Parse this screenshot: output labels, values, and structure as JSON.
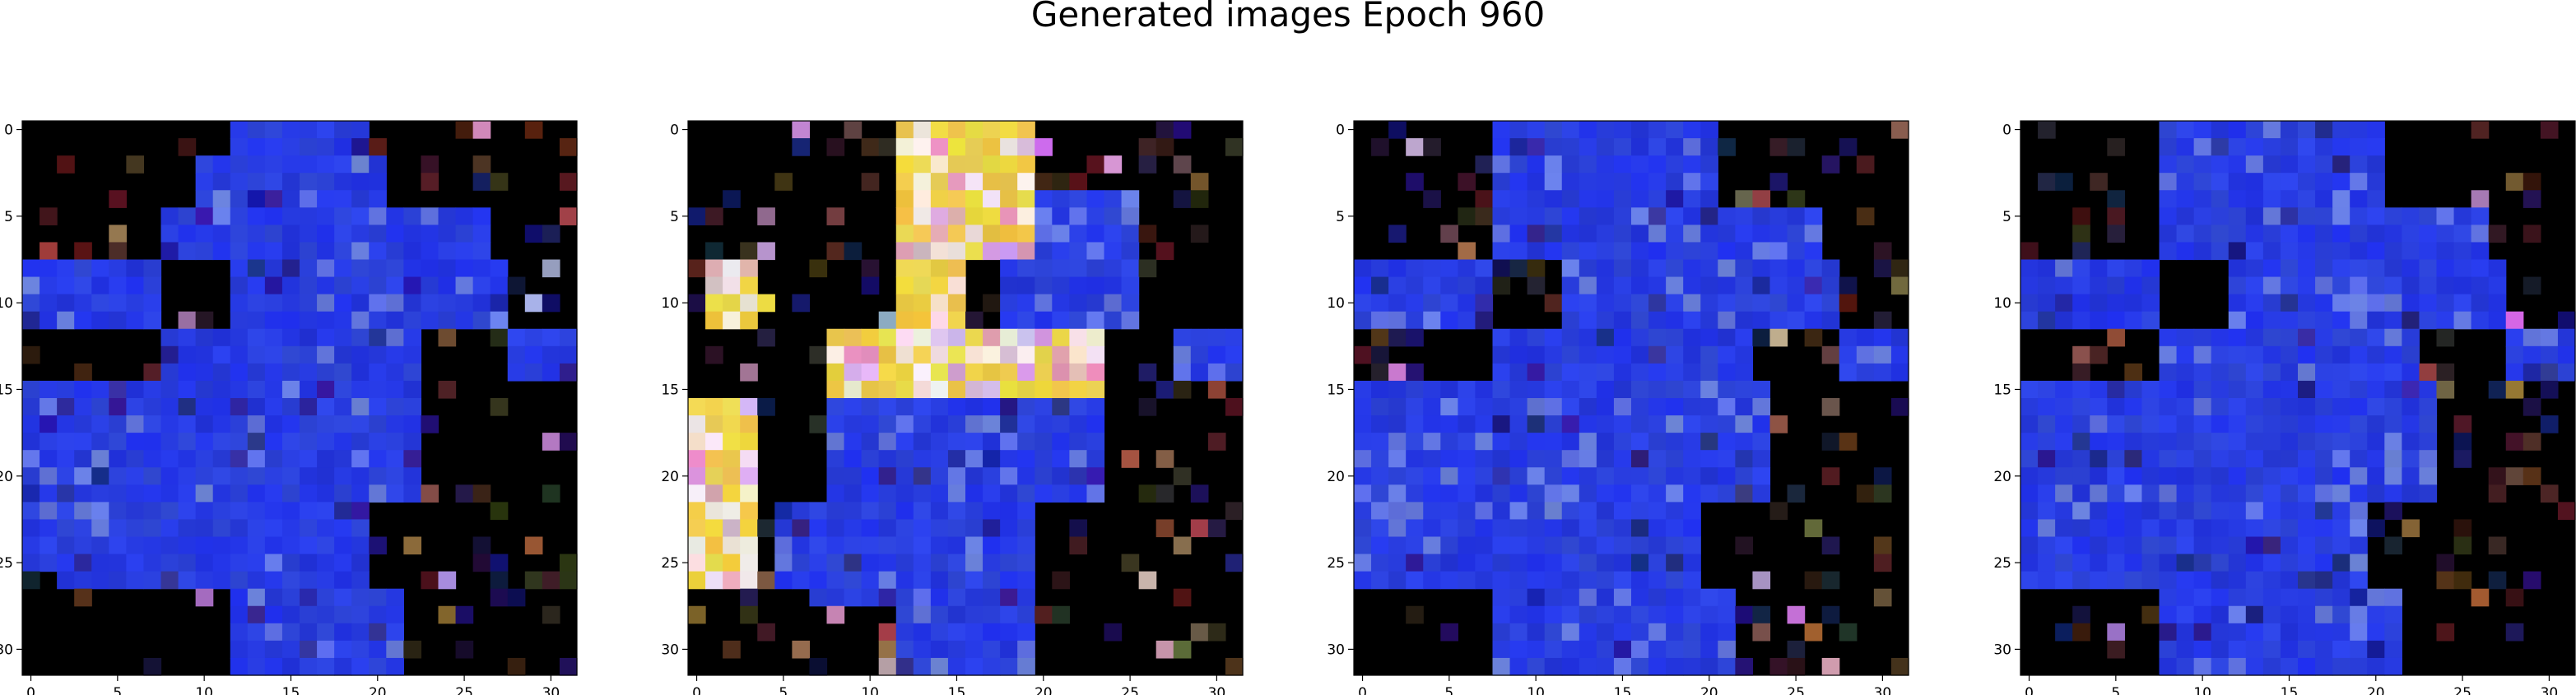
{
  "figure": {
    "title": "Generated images Epoch 960"
  },
  "chart_data": [
    {
      "type": "heatmap",
      "grid_size": [
        32,
        32
      ],
      "x_ticks": [
        0,
        5,
        10,
        15,
        20,
        25,
        30
      ],
      "y_ticks": [
        0,
        5,
        10,
        15,
        20,
        25,
        30
      ],
      "xlim": [
        -0.5,
        31.5
      ],
      "ylim": [
        31.5,
        -0.5
      ],
      "colors": {
        "background": "#000000",
        "blue_mass": "#2a3fe6",
        "yellow_shape": "#f6e63a"
      },
      "regions": {
        "blue": [
          [
            0,
            12,
            20
          ],
          [
            1,
            12,
            20
          ],
          [
            2,
            10,
            21
          ],
          [
            3,
            10,
            21
          ],
          [
            4,
            10,
            21
          ],
          [
            5,
            8,
            27
          ],
          [
            6,
            8,
            27
          ],
          [
            7,
            8,
            27
          ],
          [
            8,
            0,
            8
          ],
          [
            8,
            12,
            28
          ],
          [
            9,
            0,
            8
          ],
          [
            9,
            12,
            28
          ],
          [
            10,
            0,
            8
          ],
          [
            10,
            12,
            28
          ],
          [
            11,
            0,
            8
          ],
          [
            11,
            12,
            28
          ],
          [
            12,
            8,
            23
          ],
          [
            12,
            28,
            32
          ],
          [
            13,
            8,
            23
          ],
          [
            13,
            28,
            32
          ],
          [
            14,
            8,
            23
          ],
          [
            14,
            28,
            32
          ],
          [
            15,
            0,
            23
          ],
          [
            16,
            0,
            23
          ],
          [
            17,
            0,
            23
          ],
          [
            18,
            0,
            23
          ],
          [
            19,
            0,
            23
          ],
          [
            20,
            0,
            23
          ],
          [
            21,
            0,
            23
          ],
          [
            22,
            0,
            20
          ],
          [
            23,
            0,
            20
          ],
          [
            24,
            0,
            20
          ],
          [
            25,
            0,
            20
          ],
          [
            26,
            2,
            20
          ],
          [
            27,
            12,
            22
          ],
          [
            28,
            12,
            22
          ],
          [
            29,
            12,
            22
          ],
          [
            30,
            12,
            22
          ],
          [
            31,
            12,
            22
          ]
        ],
        "yellow": []
      }
    },
    {
      "type": "heatmap",
      "grid_size": [
        32,
        32
      ],
      "x_ticks": [
        0,
        5,
        10,
        15,
        20,
        25,
        30
      ],
      "y_ticks": [
        0,
        5,
        10,
        15,
        20,
        25,
        30
      ],
      "xlim": [
        -0.5,
        31.5
      ],
      "ylim": [
        31.5,
        -0.5
      ],
      "colors": {
        "background": "#000000",
        "blue_mass": "#2a3fe6",
        "yellow_shape": "#f6e63a"
      },
      "regions": {
        "blue": [
          [
            4,
            20,
            26
          ],
          [
            5,
            20,
            26
          ],
          [
            6,
            20,
            26
          ],
          [
            7,
            20,
            26
          ],
          [
            8,
            18,
            26
          ],
          [
            9,
            18,
            26
          ],
          [
            10,
            18,
            26
          ],
          [
            11,
            18,
            26
          ],
          [
            12,
            28,
            32
          ],
          [
            13,
            28,
            32
          ],
          [
            14,
            28,
            32
          ],
          [
            15,
            8,
            24
          ],
          [
            16,
            8,
            24
          ],
          [
            17,
            8,
            24
          ],
          [
            18,
            8,
            24
          ],
          [
            19,
            8,
            24
          ],
          [
            20,
            8,
            24
          ],
          [
            21,
            8,
            24
          ],
          [
            22,
            5,
            20
          ],
          [
            23,
            5,
            20
          ],
          [
            24,
            5,
            20
          ],
          [
            25,
            5,
            20
          ],
          [
            26,
            5,
            20
          ],
          [
            27,
            7,
            20
          ],
          [
            28,
            12,
            20
          ],
          [
            29,
            12,
            20
          ],
          [
            30,
            12,
            20
          ],
          [
            31,
            12,
            20
          ]
        ],
        "yellow": [
          [
            0,
            12,
            20
          ],
          [
            1,
            12,
            20
          ],
          [
            2,
            12,
            20
          ],
          [
            3,
            12,
            20
          ],
          [
            4,
            12,
            20
          ],
          [
            5,
            12,
            20
          ],
          [
            6,
            12,
            20
          ],
          [
            7,
            12,
            20
          ],
          [
            8,
            12,
            16
          ],
          [
            9,
            12,
            16
          ],
          [
            10,
            12,
            16
          ],
          [
            11,
            12,
            16
          ],
          [
            8,
            1,
            4
          ],
          [
            9,
            1,
            4
          ],
          [
            10,
            1,
            5
          ],
          [
            11,
            1,
            4
          ],
          [
            12,
            8,
            24
          ],
          [
            13,
            8,
            24
          ],
          [
            14,
            8,
            24
          ],
          [
            15,
            8,
            24
          ],
          [
            16,
            0,
            4
          ],
          [
            17,
            0,
            4
          ],
          [
            18,
            0,
            4
          ],
          [
            19,
            0,
            4
          ],
          [
            20,
            0,
            4
          ],
          [
            21,
            0,
            4
          ],
          [
            22,
            0,
            4
          ],
          [
            23,
            0,
            4
          ],
          [
            24,
            0,
            4
          ],
          [
            25,
            0,
            4
          ],
          [
            26,
            0,
            4
          ]
        ]
      }
    },
    {
      "type": "heatmap",
      "grid_size": [
        32,
        32
      ],
      "x_ticks": [
        0,
        5,
        10,
        15,
        20,
        25,
        30
      ],
      "y_ticks": [
        0,
        5,
        10,
        15,
        20,
        25,
        30
      ],
      "xlim": [
        -0.5,
        31.5
      ],
      "ylim": [
        31.5,
        -0.5
      ],
      "colors": {
        "background": "#000000",
        "blue_mass": "#2a3fe6",
        "yellow_shape": "#f6e63a"
      },
      "regions": {
        "blue": [
          [
            0,
            8,
            21
          ],
          [
            1,
            8,
            21
          ],
          [
            2,
            8,
            21
          ],
          [
            3,
            8,
            21
          ],
          [
            4,
            8,
            21
          ],
          [
            5,
            8,
            27
          ],
          [
            6,
            8,
            27
          ],
          [
            7,
            8,
            27
          ],
          [
            8,
            0,
            8
          ],
          [
            8,
            12,
            28
          ],
          [
            9,
            0,
            8
          ],
          [
            9,
            12,
            28
          ],
          [
            10,
            0,
            8
          ],
          [
            10,
            12,
            28
          ],
          [
            11,
            0,
            8
          ],
          [
            11,
            12,
            28
          ],
          [
            12,
            8,
            23
          ],
          [
            12,
            28,
            32
          ],
          [
            13,
            8,
            23
          ],
          [
            13,
            28,
            32
          ],
          [
            14,
            8,
            23
          ],
          [
            14,
            28,
            32
          ],
          [
            15,
            0,
            24
          ],
          [
            16,
            0,
            24
          ],
          [
            17,
            0,
            24
          ],
          [
            18,
            0,
            24
          ],
          [
            19,
            0,
            24
          ],
          [
            20,
            0,
            24
          ],
          [
            21,
            0,
            24
          ],
          [
            22,
            0,
            20
          ],
          [
            23,
            0,
            20
          ],
          [
            24,
            0,
            20
          ],
          [
            25,
            0,
            20
          ],
          [
            26,
            0,
            20
          ],
          [
            27,
            8,
            22
          ],
          [
            28,
            8,
            22
          ],
          [
            29,
            8,
            22
          ],
          [
            30,
            8,
            22
          ],
          [
            31,
            8,
            22
          ]
        ],
        "yellow": []
      }
    },
    {
      "type": "heatmap",
      "grid_size": [
        32,
        32
      ],
      "x_ticks": [
        0,
        5,
        10,
        15,
        20,
        25,
        30
      ],
      "y_ticks": [
        0,
        5,
        10,
        15,
        20,
        25,
        30
      ],
      "xlim": [
        -0.5,
        31.5
      ],
      "ylim": [
        31.5,
        -0.5
      ],
      "colors": {
        "background": "#000000",
        "blue_mass": "#2a3fe6",
        "yellow_shape": "#f6e63a"
      },
      "regions": {
        "blue": [
          [
            0,
            8,
            21
          ],
          [
            1,
            8,
            21
          ],
          [
            2,
            8,
            21
          ],
          [
            3,
            8,
            21
          ],
          [
            4,
            8,
            21
          ],
          [
            5,
            8,
            27
          ],
          [
            6,
            8,
            27
          ],
          [
            7,
            8,
            27
          ],
          [
            8,
            0,
            8
          ],
          [
            8,
            12,
            28
          ],
          [
            9,
            0,
            8
          ],
          [
            9,
            12,
            28
          ],
          [
            10,
            0,
            8
          ],
          [
            10,
            12,
            28
          ],
          [
            11,
            0,
            8
          ],
          [
            11,
            12,
            28
          ],
          [
            12,
            8,
            23
          ],
          [
            12,
            28,
            32
          ],
          [
            13,
            8,
            23
          ],
          [
            13,
            28,
            32
          ],
          [
            14,
            8,
            23
          ],
          [
            14,
            28,
            32
          ],
          [
            15,
            0,
            24
          ],
          [
            16,
            0,
            24
          ],
          [
            17,
            0,
            24
          ],
          [
            18,
            0,
            24
          ],
          [
            19,
            0,
            24
          ],
          [
            20,
            0,
            24
          ],
          [
            21,
            0,
            24
          ],
          [
            22,
            0,
            20
          ],
          [
            23,
            0,
            20
          ],
          [
            24,
            0,
            20
          ],
          [
            25,
            0,
            20
          ],
          [
            26,
            0,
            20
          ],
          [
            27,
            8,
            22
          ],
          [
            28,
            8,
            22
          ],
          [
            29,
            8,
            22
          ],
          [
            30,
            8,
            22
          ],
          [
            31,
            8,
            22
          ]
        ],
        "yellow": []
      }
    }
  ]
}
